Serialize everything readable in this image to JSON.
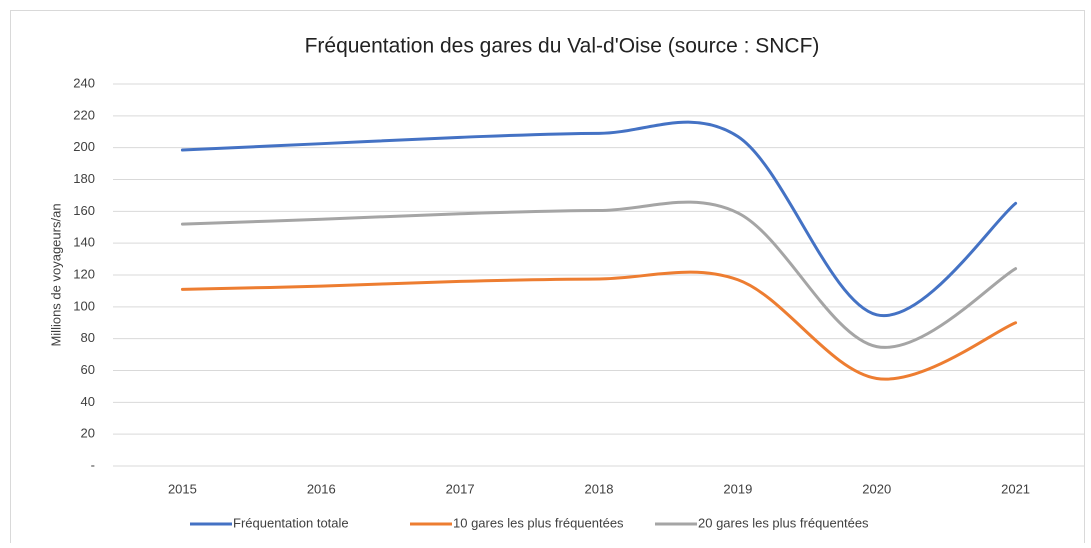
{
  "chart_data": {
    "type": "line",
    "title": "Fréquentation des gares du Val-d'Oise (source : SNCF)",
    "y_label": "Millions de voyageurs/an",
    "categories": [
      "2015",
      "2016",
      "2017",
      "2018",
      "2019",
      "2020",
      "2021"
    ],
    "series": [
      {
        "name": "Fréquentation totale",
        "color": "#4472c4",
        "values": [
          198.5,
          202.5,
          206.5,
          209,
          207,
          95,
          165
        ]
      },
      {
        "name": "10 gares les plus fréquentées",
        "color": "#ed7d31",
        "values": [
          111,
          113,
          116,
          117.5,
          117,
          55,
          90
        ]
      },
      {
        "name": "20 gares les plus fréquentées",
        "color": "#a5a5a5",
        "values": [
          152,
          155,
          158.5,
          160.5,
          159,
          75,
          124
        ]
      }
    ],
    "ylim": [
      0,
      240
    ],
    "yticks": [
      {
        "value": 0,
        "label": "-"
      },
      20,
      40,
      60,
      80,
      100,
      120,
      140,
      160,
      180,
      200,
      220,
      240
    ],
    "grid": true,
    "smooth": true,
    "legend": "bottom"
  }
}
